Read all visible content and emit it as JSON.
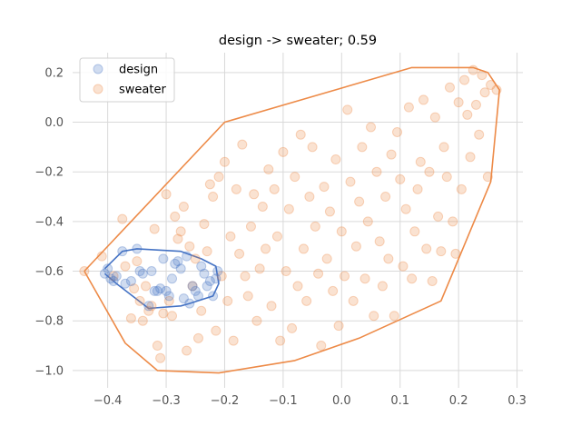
{
  "chart_data": {
    "type": "scatter",
    "title": "design -> sweater; 0.59",
    "xlabel": "",
    "ylabel": "",
    "xlim": [
      -0.46,
      0.31
    ],
    "ylim": [
      -1.07,
      0.28
    ],
    "xticks": [
      -0.4,
      -0.3,
      -0.2,
      -0.1,
      0.0,
      0.1,
      0.2,
      0.3
    ],
    "xtick_labels": [
      "−0.4",
      "−0.3",
      "−0.2",
      "−0.1",
      "0.0",
      "0.1",
      "0.2",
      "0.3"
    ],
    "yticks": [
      -1.0,
      -0.8,
      -0.6,
      -0.4,
      -0.2,
      0.0,
      0.2
    ],
    "ytick_labels": [
      "−1.0",
      "−0.8",
      "−0.6",
      "−0.4",
      "−0.2",
      "0.0",
      "0.2"
    ],
    "grid": true,
    "legend_position": "top-left",
    "series": [
      {
        "name": "design",
        "color": "#4472c4",
        "marker_alpha": 0.25,
        "points": [
          [
            -0.405,
            -0.61
          ],
          [
            -0.4,
            -0.59
          ],
          [
            -0.395,
            -0.63
          ],
          [
            -0.39,
            -0.64
          ],
          [
            -0.385,
            -0.62
          ],
          [
            -0.375,
            -0.52
          ],
          [
            -0.37,
            -0.65
          ],
          [
            -0.36,
            -0.64
          ],
          [
            -0.35,
            -0.51
          ],
          [
            -0.345,
            -0.6
          ],
          [
            -0.34,
            -0.61
          ],
          [
            -0.33,
            -0.74
          ],
          [
            -0.325,
            -0.6
          ],
          [
            -0.32,
            -0.68
          ],
          [
            -0.315,
            -0.68
          ],
          [
            -0.31,
            -0.67
          ],
          [
            -0.305,
            -0.55
          ],
          [
            -0.3,
            -0.68
          ],
          [
            -0.295,
            -0.7
          ],
          [
            -0.29,
            -0.63
          ],
          [
            -0.285,
            -0.57
          ],
          [
            -0.28,
            -0.56
          ],
          [
            -0.275,
            -0.59
          ],
          [
            -0.27,
            -0.71
          ],
          [
            -0.265,
            -0.54
          ],
          [
            -0.26,
            -0.73
          ],
          [
            -0.255,
            -0.66
          ],
          [
            -0.25,
            -0.68
          ],
          [
            -0.245,
            -0.7
          ],
          [
            -0.24,
            -0.58
          ],
          [
            -0.235,
            -0.61
          ],
          [
            -0.23,
            -0.66
          ],
          [
            -0.225,
            -0.64
          ],
          [
            -0.22,
            -0.7
          ],
          [
            -0.215,
            -0.63
          ],
          [
            -0.212,
            -0.6
          ]
        ],
        "hull": [
          [
            -0.405,
            -0.59
          ],
          [
            -0.375,
            -0.52
          ],
          [
            -0.35,
            -0.51
          ],
          [
            -0.275,
            -0.52
          ],
          [
            -0.24,
            -0.55
          ],
          [
            -0.215,
            -0.58
          ],
          [
            -0.21,
            -0.65
          ],
          [
            -0.22,
            -0.7
          ],
          [
            -0.26,
            -0.73
          ],
          [
            -0.275,
            -0.74
          ],
          [
            -0.33,
            -0.75
          ],
          [
            -0.385,
            -0.65
          ],
          [
            -0.405,
            -0.61
          ]
        ]
      },
      {
        "name": "sweater",
        "color": "#ed8a47",
        "marker_alpha": 0.25,
        "points": [
          [
            -0.44,
            -0.6
          ],
          [
            -0.41,
            -0.54
          ],
          [
            -0.39,
            -0.62
          ],
          [
            -0.375,
            -0.39
          ],
          [
            -0.37,
            -0.58
          ],
          [
            -0.36,
            -0.79
          ],
          [
            -0.355,
            -0.67
          ],
          [
            -0.35,
            -0.56
          ],
          [
            -0.345,
            -0.72
          ],
          [
            -0.34,
            -0.8
          ],
          [
            -0.335,
            -0.66
          ],
          [
            -0.33,
            -0.76
          ],
          [
            -0.325,
            -0.74
          ],
          [
            -0.32,
            -0.43
          ],
          [
            -0.315,
            -0.9
          ],
          [
            -0.31,
            -0.95
          ],
          [
            -0.305,
            -0.77
          ],
          [
            -0.3,
            -0.29
          ],
          [
            -0.295,
            -0.72
          ],
          [
            -0.29,
            -0.78
          ],
          [
            -0.285,
            -0.38
          ],
          [
            -0.28,
            -0.47
          ],
          [
            -0.275,
            -0.44
          ],
          [
            -0.27,
            -0.34
          ],
          [
            -0.265,
            -0.92
          ],
          [
            -0.26,
            -0.5
          ],
          [
            -0.255,
            -0.66
          ],
          [
            -0.25,
            -0.55
          ],
          [
            -0.245,
            -0.87
          ],
          [
            -0.24,
            -0.76
          ],
          [
            -0.235,
            -0.41
          ],
          [
            -0.23,
            -0.52
          ],
          [
            -0.225,
            -0.25
          ],
          [
            -0.22,
            -0.3
          ],
          [
            -0.215,
            -0.84
          ],
          [
            -0.21,
            -0.22
          ],
          [
            -0.205,
            -0.62
          ],
          [
            -0.2,
            -0.16
          ],
          [
            -0.195,
            -0.72
          ],
          [
            -0.19,
            -0.46
          ],
          [
            -0.185,
            -0.88
          ],
          [
            -0.18,
            -0.27
          ],
          [
            -0.175,
            -0.53
          ],
          [
            -0.17,
            -0.09
          ],
          [
            -0.165,
            -0.62
          ],
          [
            -0.16,
            -0.7
          ],
          [
            -0.155,
            -0.42
          ],
          [
            -0.15,
            -0.29
          ],
          [
            -0.145,
            -0.8
          ],
          [
            -0.14,
            -0.59
          ],
          [
            -0.135,
            -0.34
          ],
          [
            -0.13,
            -0.51
          ],
          [
            -0.125,
            -0.19
          ],
          [
            -0.12,
            -0.74
          ],
          [
            -0.115,
            -0.27
          ],
          [
            -0.11,
            -0.46
          ],
          [
            -0.105,
            -0.88
          ],
          [
            -0.1,
            -0.12
          ],
          [
            -0.095,
            -0.6
          ],
          [
            -0.09,
            -0.35
          ],
          [
            -0.085,
            -0.83
          ],
          [
            -0.08,
            -0.22
          ],
          [
            -0.075,
            -0.66
          ],
          [
            -0.07,
            -0.05
          ],
          [
            -0.065,
            -0.51
          ],
          [
            -0.06,
            -0.72
          ],
          [
            -0.055,
            -0.3
          ],
          [
            -0.05,
            -0.1
          ],
          [
            -0.045,
            -0.42
          ],
          [
            -0.04,
            -0.61
          ],
          [
            -0.035,
            -0.9
          ],
          [
            -0.03,
            -0.26
          ],
          [
            -0.025,
            -0.55
          ],
          [
            -0.02,
            -0.36
          ],
          [
            -0.015,
            -0.68
          ],
          [
            -0.01,
            -0.15
          ],
          [
            -0.005,
            -0.82
          ],
          [
            0.0,
            -0.44
          ],
          [
            0.005,
            -0.62
          ],
          [
            0.01,
            0.05
          ],
          [
            0.015,
            -0.24
          ],
          [
            0.02,
            -0.72
          ],
          [
            0.025,
            -0.5
          ],
          [
            0.03,
            -0.32
          ],
          [
            0.035,
            -0.1
          ],
          [
            0.04,
            -0.63
          ],
          [
            0.045,
            -0.4
          ],
          [
            0.05,
            -0.02
          ],
          [
            0.055,
            -0.78
          ],
          [
            0.06,
            -0.2
          ],
          [
            0.065,
            -0.48
          ],
          [
            0.07,
            -0.66
          ],
          [
            0.075,
            -0.3
          ],
          [
            0.08,
            -0.55
          ],
          [
            0.085,
            -0.13
          ],
          [
            0.09,
            -0.78
          ],
          [
            0.095,
            -0.04
          ],
          [
            0.1,
            -0.23
          ],
          [
            0.105,
            -0.58
          ],
          [
            0.11,
            -0.35
          ],
          [
            0.115,
            0.06
          ],
          [
            0.12,
            -0.63
          ],
          [
            0.125,
            -0.44
          ],
          [
            0.13,
            -0.27
          ],
          [
            0.135,
            -0.16
          ],
          [
            0.14,
            0.09
          ],
          [
            0.145,
            -0.51
          ],
          [
            0.15,
            -0.2
          ],
          [
            0.155,
            -0.64
          ],
          [
            0.16,
            0.02
          ],
          [
            0.165,
            -0.38
          ],
          [
            0.17,
            -0.52
          ],
          [
            0.175,
            -0.1
          ],
          [
            0.18,
            -0.22
          ],
          [
            0.185,
            0.14
          ],
          [
            0.19,
            -0.4
          ],
          [
            0.195,
            -0.53
          ],
          [
            0.2,
            0.08
          ],
          [
            0.205,
            -0.27
          ],
          [
            0.21,
            0.17
          ],
          [
            0.215,
            0.03
          ],
          [
            0.22,
            -0.14
          ],
          [
            0.225,
            0.21
          ],
          [
            0.23,
            0.07
          ],
          [
            0.235,
            -0.05
          ],
          [
            0.24,
            0.19
          ],
          [
            0.245,
            0.12
          ],
          [
            0.25,
            -0.22
          ],
          [
            0.255,
            0.15
          ],
          [
            0.265,
            0.13
          ]
        ],
        "hull": [
          [
            -0.44,
            -0.6
          ],
          [
            -0.2,
            0.0
          ],
          [
            0.12,
            0.22
          ],
          [
            0.225,
            0.22
          ],
          [
            0.25,
            0.2
          ],
          [
            0.27,
            0.13
          ],
          [
            0.255,
            -0.24
          ],
          [
            0.17,
            -0.72
          ],
          [
            0.03,
            -0.87
          ],
          [
            -0.08,
            -0.96
          ],
          [
            -0.21,
            -1.01
          ],
          [
            -0.265,
            -1.005
          ],
          [
            -0.315,
            -1.0
          ],
          [
            -0.37,
            -0.89
          ],
          [
            -0.44,
            -0.6
          ]
        ]
      }
    ]
  }
}
